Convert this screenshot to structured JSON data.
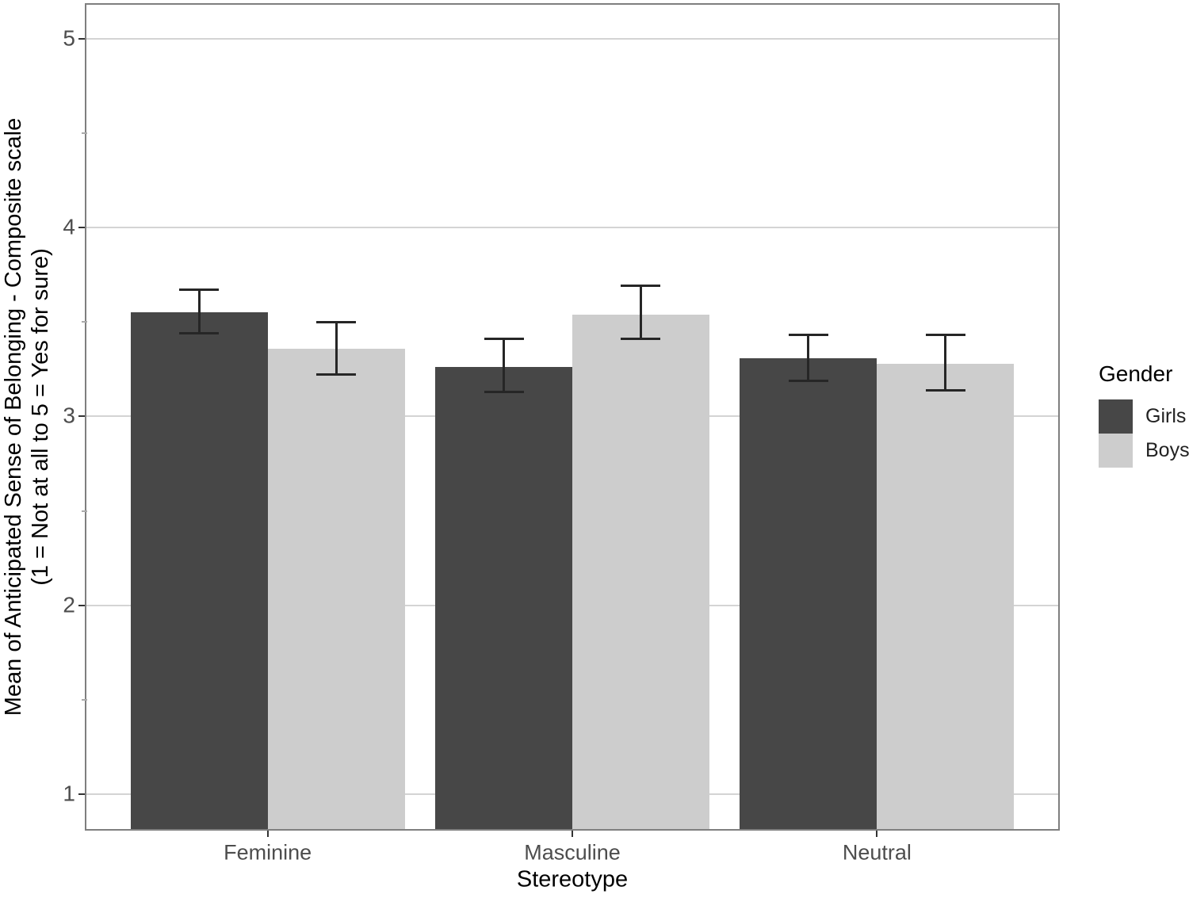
{
  "chart_data": {
    "type": "bar",
    "title": "",
    "xlabel": "Stereotype",
    "ylabel": "Mean of Anticipated Sense of Belonging - Composite scale (1 = Not at all to 5 = Yes for sure)",
    "ylabel_line1": "Mean of Anticipated Sense of Belonging - Composite scale",
    "ylabel_line2": "(1 = Not at all to 5 = Yes for sure)",
    "categories": [
      "Feminine",
      "Masculine",
      "Neutral"
    ],
    "yticks": [
      "1",
      "2",
      "3",
      "4",
      "5"
    ],
    "ytick_values": [
      1,
      2,
      3,
      4,
      5
    ],
    "minor_ytick_values": [
      1.5,
      2.5,
      3.5,
      4.5
    ],
    "ylim": [
      0.807,
      5.188
    ],
    "grid": "major-horizontal-only",
    "legend": {
      "title": "Gender",
      "position": "right"
    },
    "series": [
      {
        "name": "Girls",
        "color": "#474747",
        "values": [
          3.55,
          3.26,
          3.31
        ],
        "ci_low": [
          3.44,
          3.13,
          3.19
        ],
        "ci_high": [
          3.67,
          3.41,
          3.43
        ]
      },
      {
        "name": "Boys",
        "color": "#cdcdcd",
        "values": [
          3.36,
          3.54,
          3.28
        ],
        "ci_low": [
          3.22,
          3.41,
          3.14
        ],
        "ci_high": [
          3.5,
          3.69,
          3.43
        ]
      }
    ],
    "colors": {
      "errorbar": "#262626",
      "gridline": "#d4d4d4",
      "panel_border": "#7f7f7f",
      "tick": "#333333",
      "minor_tick": "#aaaaaa",
      "tick_label": "#4d4d4d",
      "axis_title": "#000000"
    }
  }
}
